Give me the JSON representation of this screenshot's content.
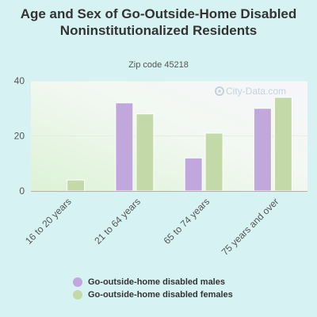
{
  "chart_data": {
    "type": "bar",
    "title": "Age and Sex of Go-Outside-Home Disabled Noninstitutionalized Residents",
    "subtitle": "Zip code 45218",
    "watermark": "City-Data.com",
    "categories": [
      "16 to 20 years",
      "21 to 64 years",
      "65 to 74 years",
      "75 years and over"
    ],
    "series": [
      {
        "name": "Go-outside-home disabled males",
        "color": "#c0a8dc",
        "values": [
          0,
          32,
          12,
          30
        ]
      },
      {
        "name": "Go-outside-home disabled females",
        "color": "#c3d9a7",
        "values": [
          4,
          28,
          21,
          34
        ]
      }
    ],
    "yticks": [
      0,
      20,
      40
    ],
    "ylim": [
      0,
      40
    ],
    "grid": true,
    "legend_position": "bottom"
  }
}
